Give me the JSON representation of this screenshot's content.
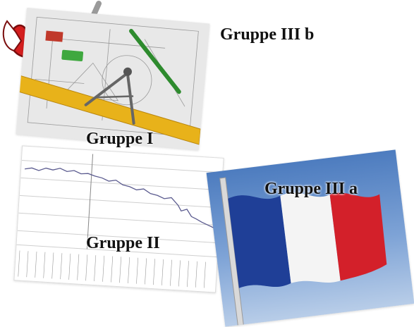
{
  "labels": {
    "gruppe_i": "Gruppe I",
    "gruppe_ii": "Gruppe II",
    "gruppe_iii_a": "Gruppe III a",
    "gruppe_iii_b": "Gruppe III b"
  },
  "images": {
    "drawing": "technical-drawing-with-compass-ruler-pencil",
    "chart": "declining-line-chart",
    "flag": "french-flag",
    "tools": "wrench-and-screwdriver-icon"
  },
  "colors": {
    "flag_blue": "#1f3f97",
    "flag_white": "#f4f4f4",
    "flag_red": "#d3202a",
    "wrench_red": "#d41e1e",
    "ruler_yellow": "#e8b21a",
    "chart_line": "#5b5b8f"
  }
}
